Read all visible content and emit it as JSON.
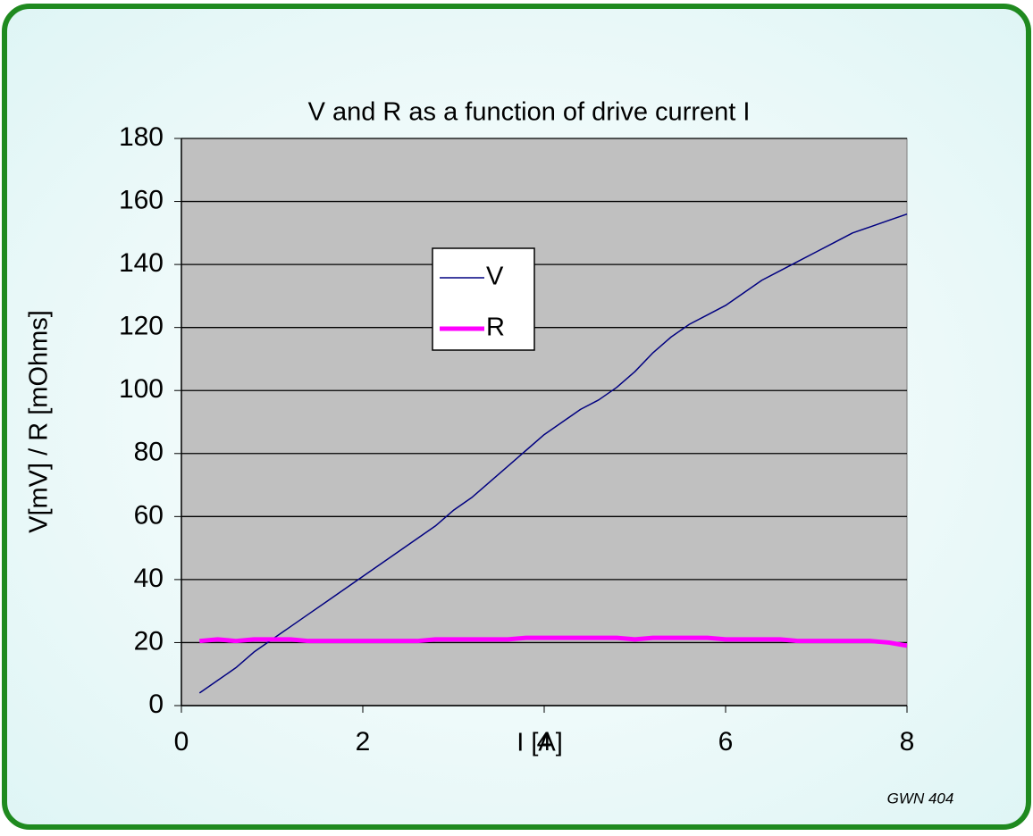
{
  "chart_data": {
    "type": "line",
    "title": "V and R as a function of drive current I",
    "x_label": "I [A]",
    "y_label": "V[mV] / R [mOhms]",
    "annotation": "GWN 404",
    "x": [
      0.2,
      0.4,
      0.6,
      0.8,
      1.0,
      1.2,
      1.4,
      1.6,
      1.8,
      2.0,
      2.2,
      2.4,
      2.6,
      2.8,
      3.0,
      3.2,
      3.4,
      3.6,
      3.8,
      4.0,
      4.2,
      4.4,
      4.6,
      4.8,
      5.0,
      5.2,
      5.4,
      5.6,
      5.8,
      6.0,
      6.2,
      6.4,
      6.6,
      6.8,
      7.0,
      7.2,
      7.4,
      7.6,
      7.8,
      8.0
    ],
    "series": [
      {
        "name": "V",
        "color": "#000080",
        "width": 1.5,
        "values": [
          4,
          8,
          12,
          17,
          21,
          25,
          29,
          33,
          37,
          41,
          45,
          49,
          53,
          57,
          62,
          66,
          71,
          76,
          81,
          86,
          90,
          94,
          97,
          101,
          106,
          112,
          117,
          121,
          124,
          127,
          131,
          135,
          138,
          141,
          144,
          147,
          150,
          152,
          154,
          156
        ]
      },
      {
        "name": "R",
        "color": "#ff00ff",
        "width": 5,
        "values": [
          20.5,
          21,
          20.5,
          21,
          21,
          21,
          20.5,
          20.5,
          20.5,
          20.5,
          20.5,
          20.5,
          20.5,
          21,
          21,
          21,
          21,
          21,
          21.5,
          21.5,
          21.5,
          21.5,
          21.5,
          21.5,
          21,
          21.5,
          21.5,
          21.5,
          21.5,
          21,
          21,
          21,
          21,
          20.5,
          20.5,
          20.5,
          20.5,
          20.5,
          20,
          19
        ]
      }
    ],
    "xlim": [
      0,
      8
    ],
    "xticks": [
      0,
      2,
      4,
      6,
      8
    ],
    "ylim": [
      0,
      180
    ],
    "yticks": [
      0,
      20,
      40,
      60,
      80,
      100,
      120,
      140,
      160,
      180
    ],
    "grid": true
  }
}
